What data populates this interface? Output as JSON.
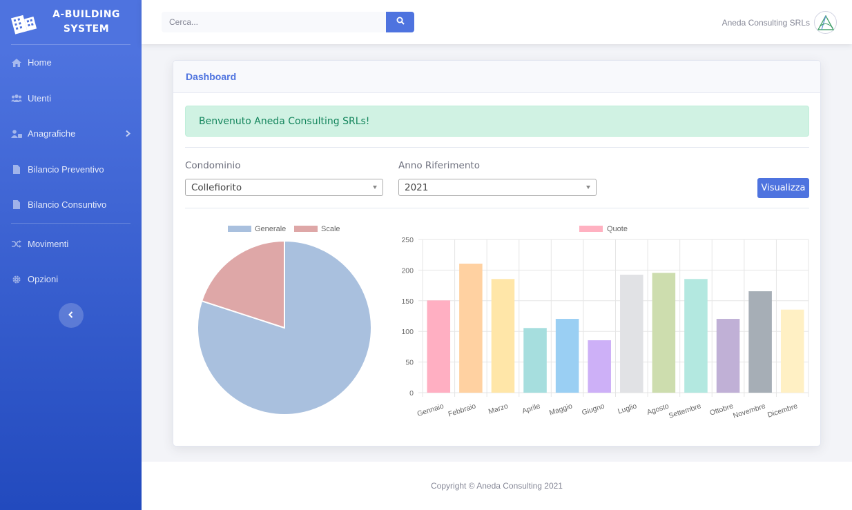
{
  "brand": {
    "line1": "A-BUILDING",
    "line2": "SYSTEM",
    "icon": "building-icon"
  },
  "sidebar": {
    "items": [
      {
        "label": "Home",
        "icon": "home-icon"
      },
      {
        "label": "Utenti",
        "icon": "users-icon"
      },
      {
        "label": "Anagrafiche",
        "icon": "user-tie-icon"
      },
      {
        "label": "Bilancio Preventivo",
        "icon": "file-icon"
      },
      {
        "label": "Bilancio Consuntivo",
        "icon": "file-icon"
      },
      {
        "label": "Movimenti",
        "icon": "random-icon"
      },
      {
        "label": "Opzioni",
        "icon": "cog-icon"
      }
    ]
  },
  "topbar": {
    "search_placeholder": "Cerca...",
    "user_name": "Aneda Consulting SRLs"
  },
  "card": {
    "title": "Dashboard",
    "welcome": "Benvenuto Aneda Consulting SRLs!",
    "condominio_label": "Condominio",
    "condominio_value": "Collefiorito",
    "anno_label": "Anno Riferimento",
    "anno_value": "2021",
    "button_label": "Visualizza"
  },
  "footer": {
    "copyright": "Copyright © Aneda Consulting 2021"
  },
  "chart_data": [
    {
      "type": "pie",
      "labels": [
        "Generale",
        "Scale"
      ],
      "values": [
        80,
        20
      ],
      "colors": [
        "#a9c0de",
        "#dea7a7"
      ],
      "legend": "top"
    },
    {
      "type": "bar",
      "categories": [
        "Gennaio",
        "Febbraio",
        "Marzo",
        "Aprile",
        "Maggio",
        "Giugno",
        "Luglio",
        "Agosto",
        "Settembre",
        "Ottobre",
        "Novembre",
        "Dicembre"
      ],
      "series": [
        {
          "name": "Quote",
          "values": [
            150,
            210,
            185,
            105,
            120,
            85,
            192,
            195,
            185,
            120,
            165,
            135
          ]
        }
      ],
      "colors": [
        "#ffafc2",
        "#ffd1a1",
        "#ffe6a8",
        "#a6dede",
        "#9acff3",
        "#cdb0f7",
        "#e1e2e5",
        "#cdddae",
        "#b3e8e0",
        "#c0b0d6",
        "#a6aeb6",
        "#fff0c4"
      ],
      "legend_color": "#ffb1c1",
      "ylim": [
        0,
        250
      ],
      "yticks": [
        "0",
        "50",
        "100",
        "150",
        "200",
        "250"
      ],
      "grid": true,
      "legend": "top"
    }
  ]
}
